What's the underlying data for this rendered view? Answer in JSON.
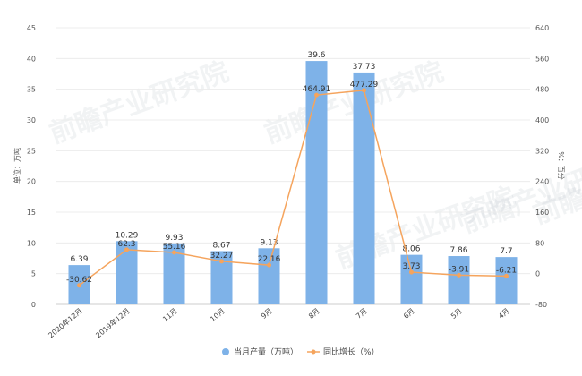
{
  "chart_data": {
    "type": "bar",
    "categories": [
      "2020年12月",
      "2019年12月",
      "11月",
      "10月",
      "9月",
      "8月",
      "7月",
      "6月",
      "5月",
      "4月"
    ],
    "series": [
      {
        "name": "当月产量（万吨）",
        "type": "bar",
        "axis": "left",
        "color": "#7eb2e8",
        "values": [
          6.39,
          10.29,
          9.93,
          8.67,
          9.13,
          39.6,
          37.73,
          8.06,
          7.86,
          7.7
        ],
        "labels": [
          "6.39",
          "10.29",
          "9.93",
          "8.67",
          "9.13",
          "39.6",
          "37.73",
          "8.06",
          "7.86",
          "7.7"
        ]
      },
      {
        "name": "同比增长（%）",
        "type": "line",
        "axis": "right",
        "color": "#f5a45d",
        "values": [
          -30.62,
          62.3,
          55.16,
          32.27,
          22.16,
          464.91,
          477.29,
          3.73,
          -3.91,
          -6.21
        ],
        "labels": [
          "-30.62",
          "62.3",
          "55.16",
          "32.27",
          "22.16",
          "464.91",
          "477.29",
          "3.73",
          "-3.91",
          "-6.21"
        ]
      }
    ],
    "ylabel": "单位：万吨",
    "y2label": "%：百分",
    "ylim": [
      0,
      45
    ],
    "yticks": [
      0,
      5,
      10,
      15,
      20,
      25,
      30,
      35,
      40,
      45
    ],
    "y2lim": [
      -80,
      640
    ],
    "y2ticks": [
      -80,
      0,
      80,
      160,
      240,
      320,
      400,
      480,
      560,
      640
    ],
    "grid": true,
    "legend": "bottom-center"
  },
  "watermark": "前瞻产业研究院"
}
